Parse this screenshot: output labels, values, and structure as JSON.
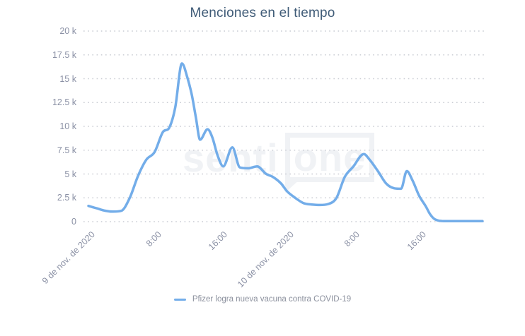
{
  "chart_data": {
    "type": "line",
    "title": "Menciones en el tiempo",
    "grid": "dotted horizontal gridlines, white background",
    "legend_position": "bottom-center",
    "x_axis": {
      "unit": "hours since 2020-11-09 00:00",
      "range": [
        0,
        47.65
      ],
      "ticks": [
        {
          "t": 0,
          "label": "9 de nov. de 2020"
        },
        {
          "t": 8,
          "label": "8:00"
        },
        {
          "t": 16,
          "label": "16:00"
        },
        {
          "t": 24,
          "label": "10 de nov. de 2020"
        },
        {
          "t": 32,
          "label": "8:00"
        },
        {
          "t": 40,
          "label": "16:00"
        }
      ]
    },
    "y_axis": {
      "range": [
        0,
        20000
      ],
      "ticks": [
        {
          "value": 20000,
          "label": "20 k"
        },
        {
          "value": 17500,
          "label": "17.5 k"
        },
        {
          "value": 15000,
          "label": "15 k"
        },
        {
          "value": 12500,
          "label": "12.5 k"
        },
        {
          "value": 10000,
          "label": "10 k"
        },
        {
          "value": 7500,
          "label": "7.5 k"
        },
        {
          "value": 5000,
          "label": "5 k"
        },
        {
          "value": 2500,
          "label": "2.5 k"
        },
        {
          "value": 0,
          "label": "0"
        }
      ]
    },
    "series": [
      {
        "name": "Pfizer logra nueva vacuna contra COVID-19",
        "color": "#73ade9",
        "points": [
          [
            0,
            1650
          ],
          [
            1,
            1400
          ],
          [
            2,
            1150
          ],
          [
            3,
            1050
          ],
          [
            4,
            1150
          ],
          [
            5,
            2500
          ],
          [
            6,
            4800
          ],
          [
            7,
            6500
          ],
          [
            8,
            7300
          ],
          [
            9,
            9400
          ],
          [
            9.8,
            9900
          ],
          [
            10.5,
            12000
          ],
          [
            11.3,
            16600
          ],
          [
            12,
            15000
          ],
          [
            12.5,
            13300
          ],
          [
            13,
            10900
          ],
          [
            13.5,
            8600
          ],
          [
            14.4,
            9700
          ],
          [
            15,
            8800
          ],
          [
            15.6,
            7000
          ],
          [
            16.3,
            5800
          ],
          [
            17.4,
            7800
          ],
          [
            18.3,
            5700
          ],
          [
            19.3,
            5600
          ],
          [
            20.4,
            5800
          ],
          [
            21.5,
            5000
          ],
          [
            22.3,
            4700
          ],
          [
            23.3,
            4000
          ],
          [
            24,
            3200
          ],
          [
            25,
            2500
          ],
          [
            26,
            1950
          ],
          [
            27,
            1800
          ],
          [
            28,
            1750
          ],
          [
            29,
            1850
          ],
          [
            30,
            2500
          ],
          [
            31,
            4700
          ],
          [
            32,
            5750
          ],
          [
            33.3,
            7100
          ],
          [
            34,
            6500
          ],
          [
            35,
            5300
          ],
          [
            36,
            4000
          ],
          [
            37,
            3500
          ],
          [
            37.8,
            3450
          ],
          [
            38.5,
            5300
          ],
          [
            39.2,
            4300
          ],
          [
            40,
            2700
          ],
          [
            40.8,
            1600
          ],
          [
            41.3,
            800
          ],
          [
            41.8,
            300
          ],
          [
            42.3,
            120
          ],
          [
            43,
            60
          ],
          [
            44,
            60
          ],
          [
            45,
            60
          ],
          [
            46,
            60
          ],
          [
            47,
            60
          ],
          [
            47.65,
            60
          ]
        ]
      }
    ]
  },
  "watermark": {
    "text_plain": "senti",
    "text_boxed": "one"
  },
  "colors": {
    "line": "#73ade9",
    "title_text": "#3f5b77",
    "axis_label_text": "#8b91a5",
    "grid_dots": "#c9ccd3",
    "legend_text": "#8b909d",
    "watermark": "#f0f2f5",
    "background": "#ffffff"
  }
}
